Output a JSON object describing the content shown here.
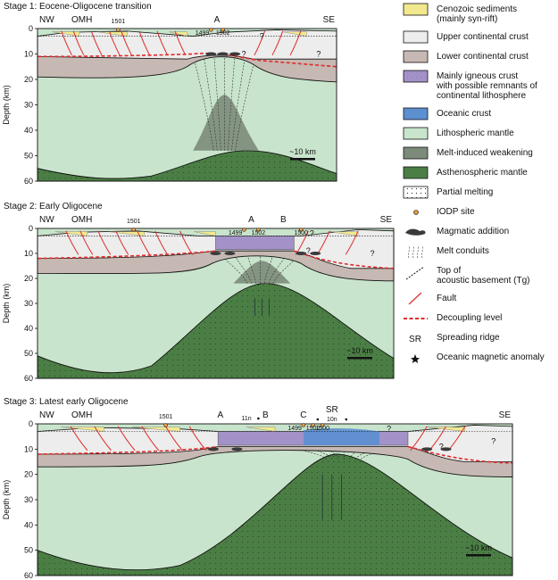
{
  "stages": [
    {
      "title": "Stage 1: Eocene-Oligocene transition",
      "labels": {
        "nw": "NW",
        "omh": "OMH",
        "se": "SE",
        "a": "A",
        "b": "",
        "c": "",
        "sr": "",
        "site1501": "1501",
        "site1499": "1499",
        "site1502": "1502",
        "site1500": "",
        "anom11n": "",
        "anom10n": ""
      },
      "scale_label": "~10 km"
    },
    {
      "title": "Stage 2: Early Oligocene",
      "labels": {
        "nw": "NW",
        "omh": "OMH",
        "se": "SE",
        "a": "A",
        "b": "B",
        "c": "",
        "sr": "",
        "site1501": "1501",
        "site1499": "1499",
        "site1502": "1502",
        "site1500": "1500",
        "anom11n": "",
        "anom10n": ""
      },
      "scale_label": "~10 km"
    },
    {
      "title": "Stage 3: Latest early Oligocene",
      "labels": {
        "nw": "NW",
        "omh": "OMH",
        "se": "SE",
        "a": "A",
        "b": "B",
        "c": "C",
        "sr": "SR",
        "site1501": "1501",
        "site1499": "1499",
        "site1502": "1502",
        "site1500": "1500",
        "anom11n": "11n",
        "anom10n": "10n"
      },
      "scale_label": "~10 km"
    }
  ],
  "axis": {
    "ylabel": "Depth (km)",
    "ticks": [
      "0",
      "10",
      "20",
      "30",
      "40",
      "50",
      "60"
    ]
  },
  "question_mark": "?",
  "legend": [
    {
      "label": "Cenozoic sediments\n(mainly syn-rift)",
      "swatch": "sediment"
    },
    {
      "label": "Upper continental crust",
      "swatch": "upper-crust"
    },
    {
      "label": "Lower continental crust",
      "swatch": "lower-crust"
    },
    {
      "label": "Mainly igneous crust\nwith possible remnants of\ncontinental lithosphere",
      "swatch": "igneous"
    },
    {
      "label": "Oceanic crust",
      "swatch": "oceanic"
    },
    {
      "label": "Lithospheric mantle",
      "swatch": "lith-mantle"
    },
    {
      "label": "Melt-induced weakening",
      "swatch": "weakening"
    },
    {
      "label": "Asthenospheric mantle",
      "swatch": "astheno"
    },
    {
      "label": "Partial melting",
      "swatch": "partial-melt"
    },
    {
      "label": "IODP site",
      "swatch": "iodp"
    },
    {
      "label": "Magmatic addition",
      "swatch": "magmatic"
    },
    {
      "label": "Melt conduits",
      "swatch": "conduits"
    },
    {
      "label": "Top of\nacoustic basement (Tg)",
      "swatch": "basement"
    },
    {
      "label": "Fault",
      "swatch": "fault"
    },
    {
      "label": "Decoupling level",
      "swatch": "decoupling"
    },
    {
      "label": "Spreading ridge",
      "swatch": "ridge",
      "symbol": "SR"
    },
    {
      "label": "Oceanic magnetic anomaly",
      "swatch": "anomaly"
    }
  ],
  "colors": {
    "sediment": "#f2e98e",
    "upper_crust": "#ededed",
    "lower_crust": "#c6b8b3",
    "igneous": "#a392c8",
    "oceanic": "#5b8fd0",
    "lith_mantle": "#c9e4cc",
    "weakening": "#7c8b7a",
    "astheno": "#4b7e45",
    "fault": "#e02a2a",
    "decoupling": "#e02a2a",
    "site": "#e89a3c"
  }
}
